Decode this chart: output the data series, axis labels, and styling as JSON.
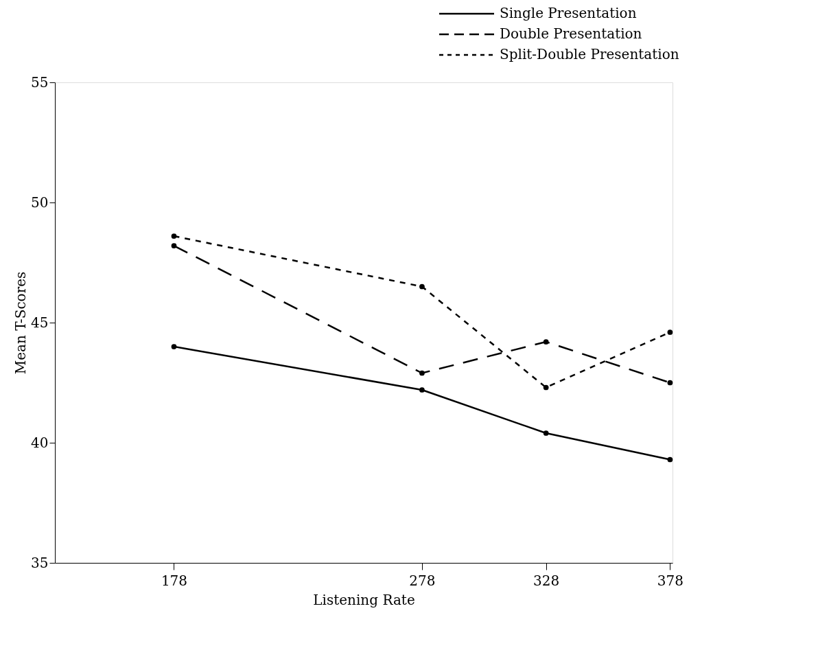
{
  "chart_data": {
    "type": "line",
    "xlabel": "Listening Rate",
    "ylabel": "Mean T-Scores",
    "x": [
      178,
      278,
      328,
      378
    ],
    "xlim": [
      130,
      379
    ],
    "xticks": [
      178,
      278,
      328,
      378
    ],
    "ylim": [
      35,
      55
    ],
    "yticks": [
      35,
      40,
      45,
      50,
      55
    ],
    "grid": false,
    "legend": "top right",
    "marker": "circle",
    "series": [
      {
        "name": "Single Presentation",
        "color": "#000000",
        "line_style": "solid",
        "values": [
          44.0,
          42.2,
          40.4,
          39.3
        ]
      },
      {
        "name": "Double Presentation",
        "color": "#000000",
        "line_style": "dashed",
        "values": [
          48.2,
          42.9,
          44.2,
          42.5
        ]
      },
      {
        "name": "Split-Double Presentation",
        "color": "#000000",
        "line_style": "dotted",
        "values": [
          48.6,
          46.5,
          42.3,
          44.6
        ]
      }
    ]
  }
}
